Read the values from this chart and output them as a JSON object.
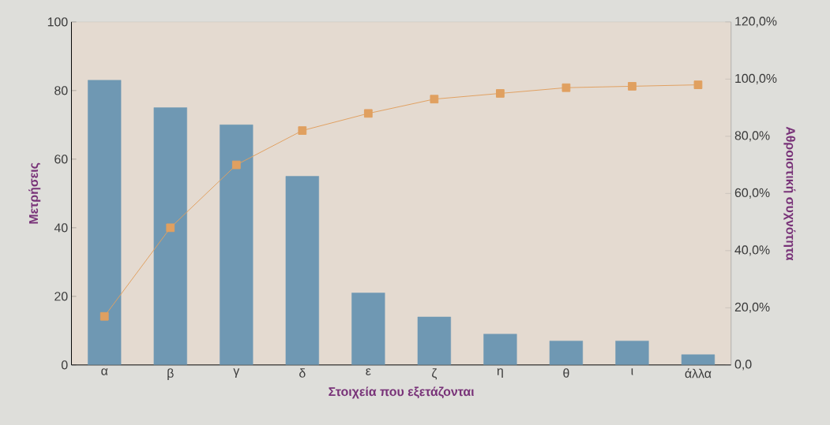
{
  "chart_data": {
    "type": "bar",
    "xlabel": "Στοιχεία που εξετάζονται",
    "ylabel": "Μετρήσεις",
    "y2label": "Αθροιστική συχνότητα",
    "categories": [
      "α",
      "β",
      "γ",
      "δ",
      "ε",
      "ζ",
      "η",
      "θ",
      "ι",
      "άλλα"
    ],
    "series": [
      {
        "color": "#6f98b3",
        "values": [
          83,
          75,
          70,
          55,
          21,
          14,
          9,
          7,
          7,
          3
        ]
      },
      {
        "type": "line",
        "axis": "y2",
        "color": "#e0a060",
        "marker": "square",
        "values": [
          17,
          48,
          70,
          82,
          88,
          93,
          95,
          97,
          97.5,
          98
        ]
      }
    ],
    "ylim": [
      0,
      100
    ],
    "yticks": [
      0,
      20,
      40,
      60,
      80,
      100
    ],
    "y2lim": [
      0,
      120
    ],
    "y2ticks": [
      {
        "value": 0,
        "label": "0,0"
      },
      {
        "value": 20,
        "label": "20,0%"
      },
      {
        "value": 40,
        "label": "40,0%"
      },
      {
        "value": 60,
        "label": "60,0%"
      },
      {
        "value": 80,
        "label": "80,0%"
      },
      {
        "value": 100,
        "label": "100,0%"
      },
      {
        "value": 120,
        "label": "120,0%"
      }
    ],
    "grid": false
  }
}
